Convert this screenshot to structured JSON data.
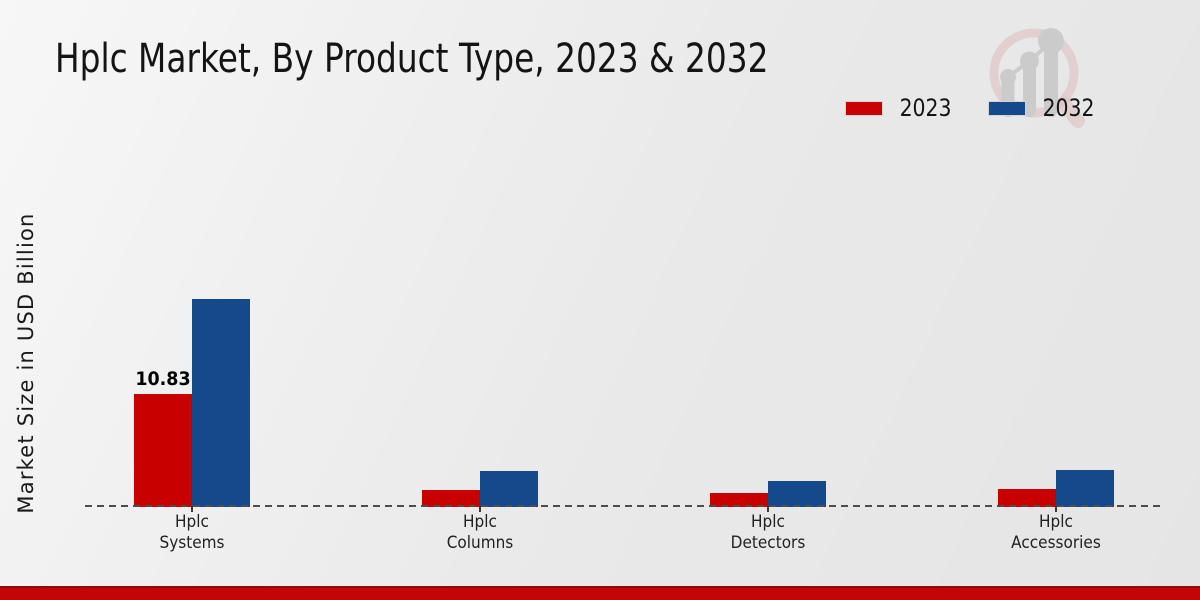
{
  "header": {
    "title": "Hplc Market, By Product Type, 2023 & 2032"
  },
  "axes": {
    "y_label": "Market Size in USD Billion"
  },
  "legend": {
    "position": "top-right",
    "items": [
      {
        "label": "2023",
        "color": "#c80000"
      },
      {
        "label": "2032",
        "color": "#14498c"
      }
    ]
  },
  "watermark": {
    "name": "market-research-magnifier-growth-logo",
    "ring_color": "#dcb9b9",
    "bars_color": "#c7c7c7"
  },
  "footer": {
    "color": "#c20505"
  },
  "chart_data": {
    "type": "bar",
    "title": "Hplc Market, By Product Type, 2023 & 2032",
    "ylabel": "Market Size in USD Billion",
    "xlabel": "",
    "categories": [
      "Hplc Systems",
      "Hplc Columns",
      "Hplc Detectors",
      "Hplc Accessories"
    ],
    "category_label_lines": [
      [
        "Hplc",
        "Systems"
      ],
      [
        "Hplc",
        "Columns"
      ],
      [
        "Hplc",
        "Detectors"
      ],
      [
        "Hplc",
        "Accessories"
      ]
    ],
    "series": [
      {
        "name": "2023",
        "color": "#c80000",
        "values": [
          10.83,
          1.65,
          1.35,
          1.7
        ]
      },
      {
        "name": "2032",
        "color": "#14498c",
        "values": [
          19.9,
          3.45,
          2.45,
          3.55
        ]
      }
    ],
    "annotations": [
      {
        "series_index": 0,
        "category_index": 0,
        "text": "10.83"
      }
    ],
    "ylim": [
      0,
      21
    ],
    "grid": false,
    "baseline_style": "dashed",
    "legend_position": "top-right"
  }
}
